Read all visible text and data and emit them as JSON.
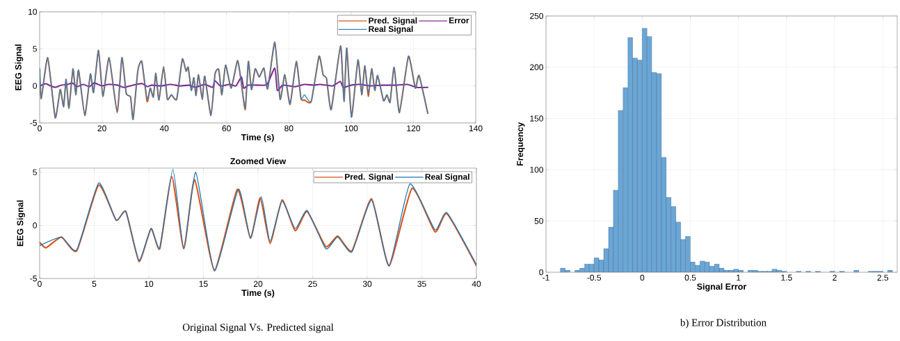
{
  "chart_data": [
    {
      "type": "line",
      "xlabel": "Time (s)",
      "ylabel": "EEG Signal",
      "xlim": [
        0,
        140
      ],
      "ylim": [
        -5,
        10
      ],
      "xticks": [
        0,
        20,
        40,
        60,
        80,
        100,
        120,
        140
      ],
      "yticks": [
        -5,
        0,
        5,
        10
      ],
      "grid": true,
      "legend": "top right",
      "series": [
        {
          "name": "Pred. Signal",
          "color": "#d95319",
          "x": [
            0,
            0.5,
            2.6,
            5,
            6.6,
            7.7,
            8.5,
            9.4,
            10.7,
            11.6,
            12.5,
            14.5,
            16.3,
            17.3,
            18.9,
            20.3,
            22.3,
            24.9,
            26.4,
            27.8,
            29.2,
            30,
            31.5,
            32.8,
            34.5,
            35.5,
            36.5,
            37.3,
            38.3,
            39.8,
            41,
            42.3,
            44,
            45.8,
            47,
            47.7,
            48.7,
            49.5,
            50.2,
            51,
            52.2,
            53,
            55,
            56.3,
            57.5,
            58.5,
            59.7,
            61.5,
            63.5,
            64.5,
            66,
            67,
            68,
            69.2,
            70.5,
            72,
            73.2,
            75.5,
            77.2,
            78.7,
            80.4,
            82.4,
            83.9,
            85,
            87.2,
            89.7,
            91,
            92.1,
            93.6,
            96.6,
            97.7,
            98.6,
            100.1,
            102.2,
            103.4,
            104.4,
            105.5,
            106.6,
            107.6,
            108.5,
            110.4,
            111.5,
            112.5,
            113.8,
            115.5,
            118.4,
            120.6,
            121.8,
            124.6
          ],
          "values": [
            2.3,
            -1.7,
            3.8,
            -4.3,
            -0.5,
            -2.8,
            0.9,
            -3,
            2.3,
            -1.2,
            2.1,
            -4,
            1.6,
            -0.9,
            4.8,
            -1.4,
            3.8,
            -3.6,
            3.8,
            -1,
            -1.5,
            -4.5,
            2,
            3.3,
            -2.1,
            -0.3,
            -1.5,
            1.7,
            -1.9,
            2.6,
            -1.8,
            -1.2,
            -1.8,
            3.6,
            2,
            2.5,
            -0.6,
            1.1,
            -1.3,
            1.5,
            -1.8,
            1.3,
            -4,
            1.6,
            2.2,
            -1.2,
            2.8,
            -0.3,
            3.4,
            1.2,
            -3.2,
            3.3,
            -0.5,
            2.3,
            1.2,
            2.4,
            -0.4,
            5.9,
            -1.8,
            1.5,
            -2.5,
            3.3,
            -1.7,
            -1.9,
            -2.1,
            4,
            1.5,
            1,
            -3.2,
            5.4,
            -2.1,
            5.1,
            -4.2,
            3.5,
            -1.2,
            2.7,
            -1.4,
            2.3,
            -0.6,
            1.4,
            -2,
            -1.2,
            -2.2,
            2.5,
            -3.6,
            4,
            -0.3,
            1.4,
            -3.7
          ]
        },
        {
          "name": "Error",
          "color": "#7e2f8e",
          "x": [
            0,
            2,
            3,
            5,
            7,
            9,
            10.5,
            12,
            14,
            16,
            17.5,
            20,
            22,
            25,
            27,
            29,
            31,
            33,
            34.5,
            36,
            39,
            42,
            45,
            48,
            50,
            53,
            55.5,
            56.3,
            58,
            61,
            63,
            64.8,
            65.5,
            67,
            70,
            73,
            75.5,
            76.3,
            78,
            82,
            85,
            88,
            90,
            94,
            96.5,
            97.5,
            100,
            103,
            106,
            110,
            114,
            118,
            121,
            124.6
          ],
          "values": [
            0,
            0.3,
            0.1,
            -0.2,
            0.1,
            0.2,
            0.4,
            -0.1,
            0.2,
            -0.1,
            0.4,
            0,
            0.2,
            0.1,
            -0.2,
            0,
            0.2,
            0.3,
            -0.1,
            0.1,
            0,
            0.2,
            0,
            0.1,
            -0.2,
            0.2,
            -0.2,
            0.7,
            0,
            0.2,
            0,
            1.2,
            -0.3,
            0.1,
            0.1,
            0.2,
            2.4,
            -0.6,
            0.1,
            -0.1,
            0.2,
            0.1,
            0.2,
            0,
            0.6,
            -0.2,
            0.1,
            0.2,
            0,
            0.1,
            0.1,
            0.2,
            -0.2,
            -0.2
          ]
        },
        {
          "name": "Real Signal",
          "color": "#2e86c1",
          "x": [
            0,
            0.5,
            2.6,
            5,
            6.6,
            7.7,
            8.5,
            9.4,
            10.7,
            11.6,
            12.5,
            14.5,
            16.3,
            17.3,
            18.9,
            20.3,
            22.3,
            24.9,
            26.4,
            27.8,
            29.2,
            30,
            31.5,
            32.8,
            34.5,
            35.5,
            36.5,
            37.3,
            38.3,
            39.8,
            41,
            42.3,
            44,
            45.8,
            47,
            47.7,
            48.7,
            49.5,
            50.2,
            51,
            52.2,
            53,
            55,
            56.3,
            57.5,
            58.5,
            59.7,
            61.5,
            63.5,
            64.5,
            66,
            67,
            68,
            69.2,
            70.5,
            72,
            73.2,
            75.5,
            77.2,
            78.7,
            80.4,
            82.4,
            83.9,
            85,
            87.2,
            89.7,
            91,
            92.1,
            93.6,
            96.6,
            97.7,
            98.6,
            100.1,
            102.2,
            103.4,
            104.4,
            105.5,
            106.6,
            107.6,
            108.5,
            110.4,
            111.5,
            112.5,
            113.8,
            115.5,
            118.4,
            120.6,
            121.8,
            124.6
          ],
          "values": [
            2.3,
            -1.7,
            3.8,
            -4.3,
            -0.5,
            -2.8,
            0.9,
            -3,
            2.3,
            -1.2,
            2.1,
            -4,
            1.6,
            -0.9,
            4.8,
            -1.4,
            3.8,
            -3.6,
            3.8,
            -1,
            -1.5,
            -4.5,
            2,
            3.3,
            -1.8,
            -0.3,
            -1.5,
            1.7,
            -1.9,
            2.6,
            -1.8,
            -1.2,
            -1.8,
            3.6,
            2,
            2.5,
            -0.6,
            1.1,
            -1.3,
            1.5,
            -1.8,
            1.3,
            -4,
            1.6,
            2.2,
            -1.2,
            2.8,
            -0.3,
            3.4,
            1.2,
            -3,
            3.3,
            -0.5,
            2.3,
            1.2,
            2.4,
            -0.4,
            5.9,
            -1.8,
            1.5,
            -2.5,
            3.3,
            -1.7,
            -1.2,
            -2.1,
            4,
            1.5,
            1,
            -3.2,
            5.4,
            -2.1,
            5.1,
            -4.2,
            3.5,
            -1.2,
            2.7,
            -1,
            2.3,
            -0.6,
            1.4,
            -2,
            -1.2,
            -2.2,
            2.5,
            -3.6,
            4,
            -0.3,
            1.4,
            -3.7
          ]
        }
      ]
    },
    {
      "type": "line",
      "title": "Zoomed View",
      "xlabel": "Time (s)",
      "ylabel": "EEG Signal",
      "xlim": [
        0,
        40
      ],
      "ylim": [
        -5,
        5.4
      ],
      "xticks": [
        0,
        5,
        10,
        15,
        20,
        25,
        30,
        35,
        40
      ],
      "yticks": [
        -5,
        0,
        5
      ],
      "grid": true,
      "legend": "top right",
      "annotations": [
        "Original Signal Vs. Predicted signal"
      ],
      "series": [
        {
          "name": "Pred. Signal",
          "color": "#d95319",
          "x": [
            0,
            0.6,
            2,
            3.4,
            5.4,
            7,
            7.9,
            9.1,
            10.2,
            11,
            12.1,
            13.2,
            14.2,
            16,
            18.1,
            19.3,
            20.2,
            21.1,
            22.2,
            23.4,
            24.5,
            26.2,
            27.3,
            28.6,
            30.4,
            32,
            34.1,
            36.2,
            37.3,
            40
          ],
          "values": [
            -1.6,
            -2.1,
            -1.1,
            -2.4,
            3.8,
            0.5,
            1.3,
            -3.4,
            -0.3,
            -2.2,
            4.6,
            -2.2,
            4.3,
            -4.2,
            3.4,
            -1.2,
            2.6,
            -1.7,
            2.4,
            -0.5,
            1.3,
            -2,
            -1,
            -2.4,
            2.5,
            -3.8,
            3.5,
            -0.6,
            1.1,
            -3.8
          ]
        },
        {
          "name": "Real Signal",
          "color": "#1f77b4",
          "x": [
            0,
            2,
            3.4,
            5.4,
            7,
            7.9,
            9.1,
            10.2,
            11,
            12.2,
            13.2,
            14.3,
            16,
            18.2,
            19.3,
            20.3,
            21.1,
            22.2,
            23.4,
            24.5,
            26.2,
            27.3,
            28.6,
            30.4,
            32,
            33.9,
            36.2,
            37.3,
            40
          ],
          "values": [
            -1.9,
            -1.1,
            -2.3,
            4,
            0.5,
            1.3,
            -3.3,
            -0.3,
            -2.1,
            5.3,
            -2.2,
            5,
            -4.3,
            3.4,
            -1.2,
            2.7,
            -1.5,
            2.3,
            -0.3,
            1.4,
            -2.2,
            -1.1,
            -2.5,
            2.4,
            -3.8,
            3.9,
            -0.4,
            1.2,
            -3.7
          ]
        }
      ]
    },
    {
      "type": "histogram",
      "xlabel": "Signal Error",
      "ylabel": "Frequency",
      "xlim": [
        -1,
        2.65
      ],
      "ylim": [
        0,
        250
      ],
      "xticks": [
        -1,
        -0.5,
        0,
        0.5,
        1,
        1.5,
        2,
        2.5
      ],
      "yticks": [
        0,
        50,
        100,
        150,
        200,
        250
      ],
      "grid": true,
      "color": "#6aa6d6",
      "annotations": [
        "b) Error Distribution"
      ],
      "bins": [
        -0.85,
        -0.8,
        -0.75,
        -0.7,
        -0.65,
        -0.6,
        -0.55,
        -0.5,
        -0.45,
        -0.4,
        -0.35,
        -0.3,
        -0.25,
        -0.2,
        -0.15,
        -0.1,
        -0.05,
        0,
        0.05,
        0.1,
        0.15,
        0.2,
        0.25,
        0.3,
        0.35,
        0.4,
        0.45,
        0.5,
        0.55,
        0.6,
        0.65,
        0.7,
        0.75,
        0.8,
        0.85,
        0.9,
        0.95,
        1,
        1.05,
        1.1,
        1.15,
        1.2,
        1.25,
        1.3,
        1.35,
        1.4,
        1.45,
        1.5,
        1.55,
        1.6,
        1.65,
        1.7,
        1.75,
        1.8,
        1.85,
        1.9,
        1.95,
        2,
        2.05,
        2.1,
        2.15,
        2.2,
        2.25,
        2.3,
        2.35,
        2.4,
        2.45,
        2.5,
        2.55,
        2.6
      ],
      "values": [
        4,
        2,
        0,
        2,
        4,
        8,
        8,
        14,
        12,
        23,
        44,
        80,
        158,
        180,
        229,
        209,
        207,
        238,
        230,
        195,
        194,
        112,
        73,
        64,
        49,
        32,
        35,
        10,
        7,
        11,
        10,
        6,
        8,
        4,
        2,
        2,
        3,
        2,
        0,
        2,
        2,
        1,
        1,
        1,
        3,
        2,
        1,
        0,
        0,
        1,
        0,
        1,
        0,
        1,
        0,
        0,
        1,
        0,
        1,
        0,
        0,
        2,
        0,
        0,
        1,
        1,
        1,
        0,
        2
      ]
    }
  ]
}
